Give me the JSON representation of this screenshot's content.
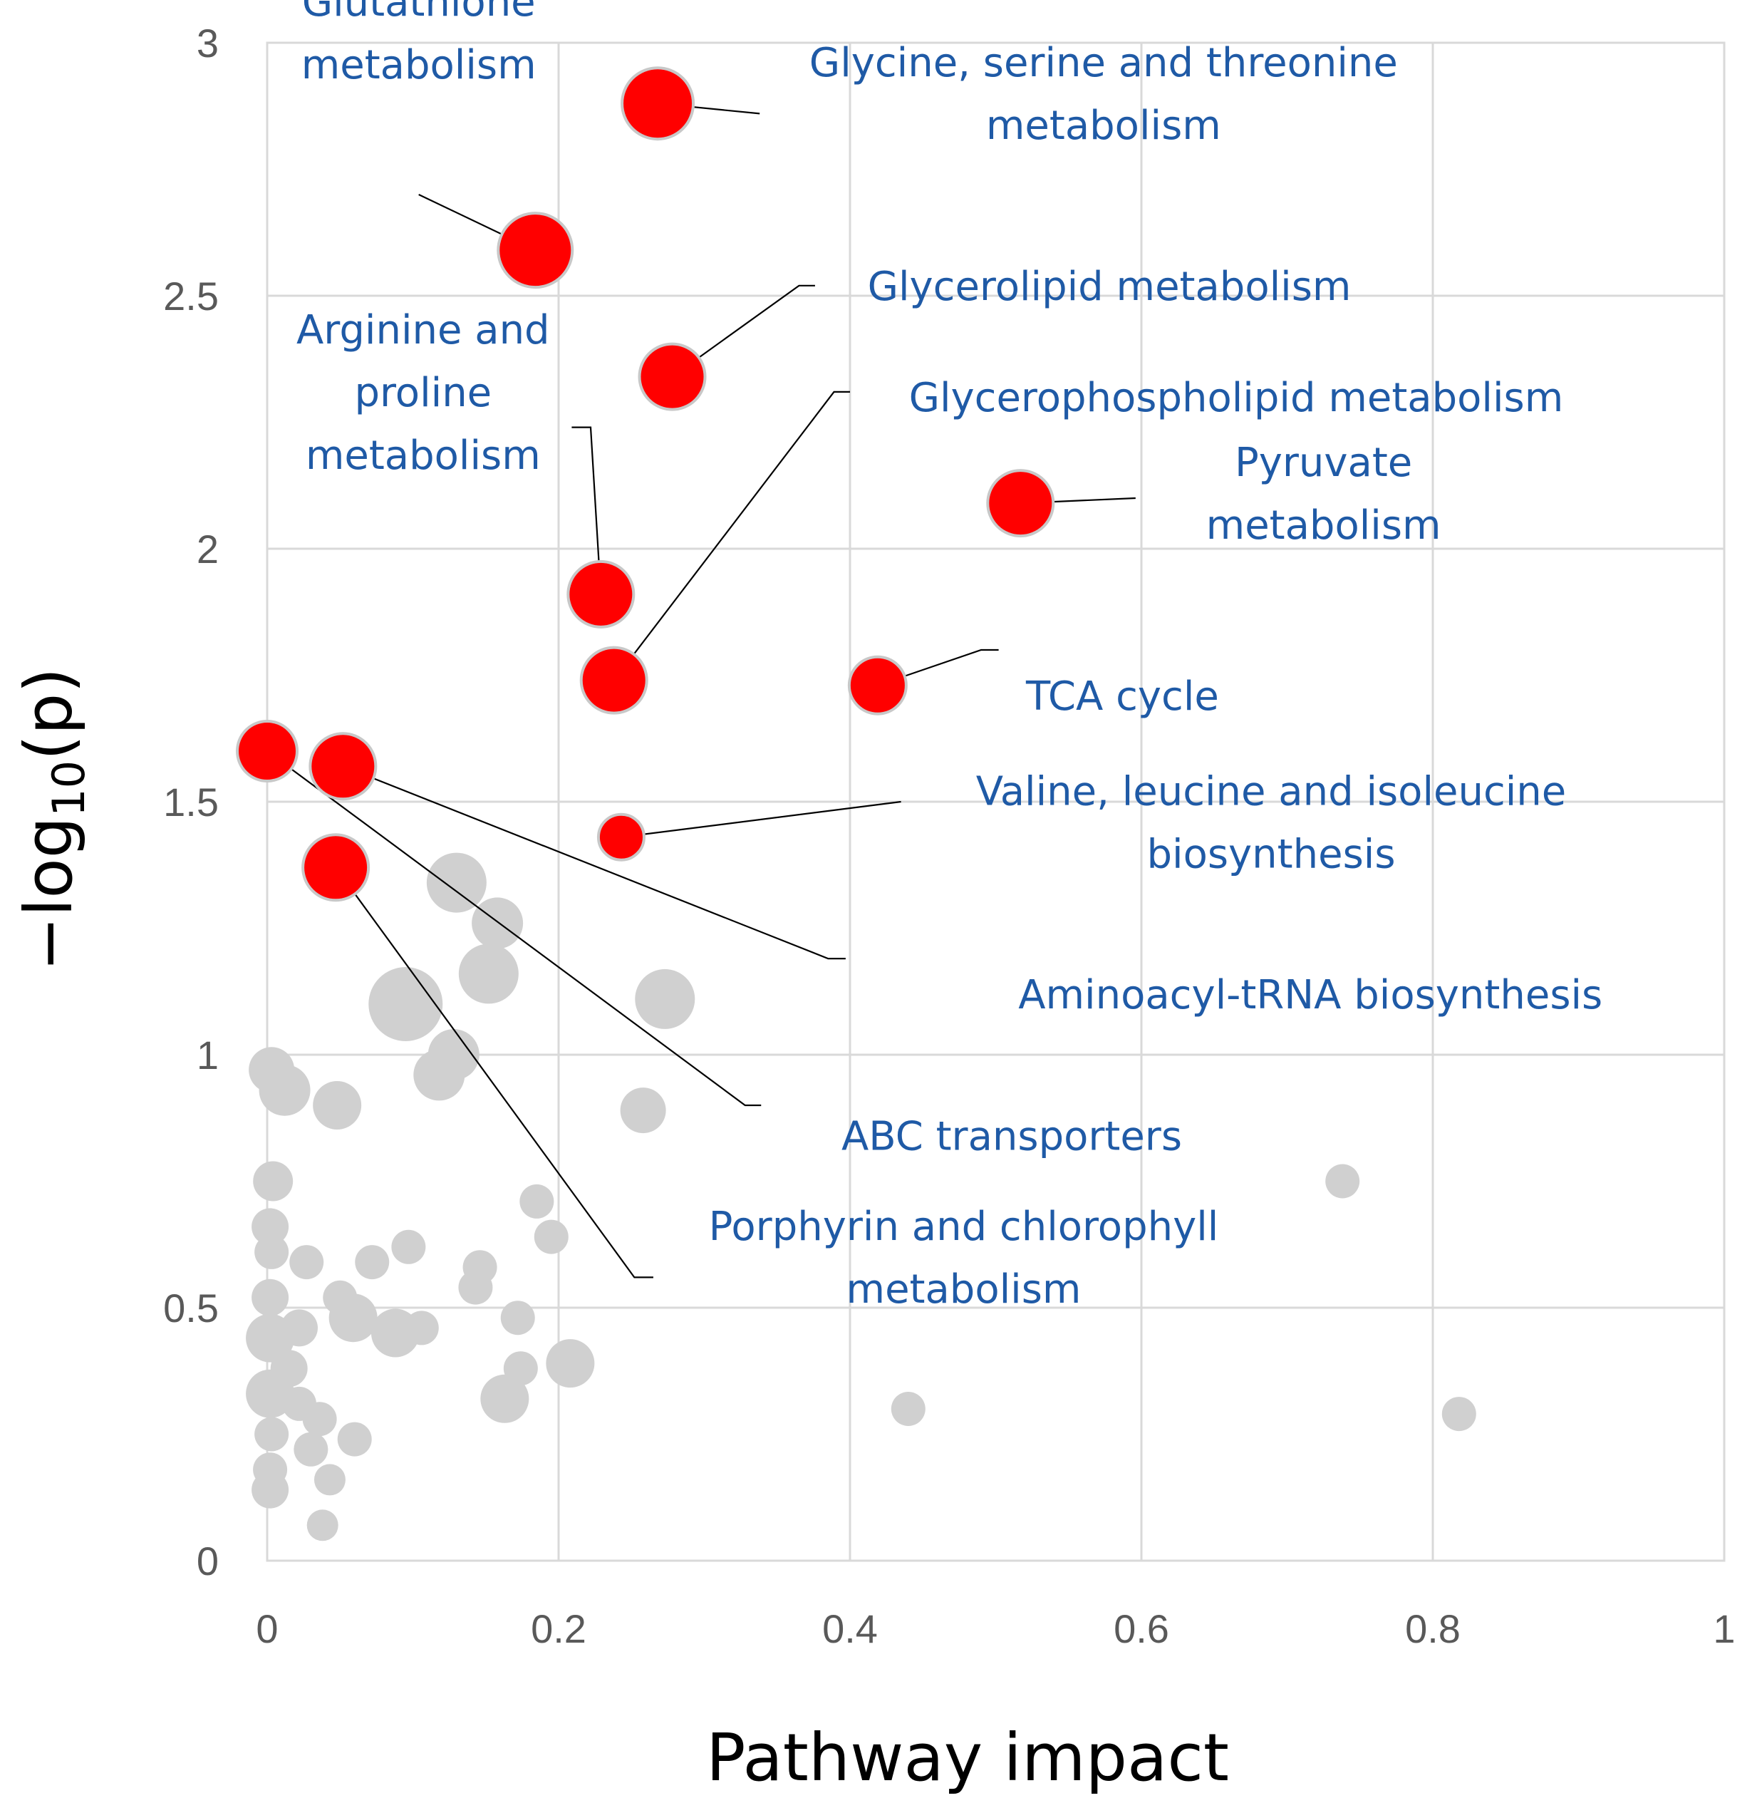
{
  "chart_data": {
    "type": "scatter",
    "xlabel": "Pathway impact",
    "ylabel": "−log10(p)",
    "ylabel_parts": {
      "prefix": "−log",
      "sub": "10",
      "suffix": "(p)"
    },
    "xlim": [
      0,
      1
    ],
    "ylim": [
      0,
      3
    ],
    "x_ticks": [
      "0",
      "0.2",
      "0.4",
      "0.6",
      "0.8",
      "1"
    ],
    "y_ticks": [
      "0",
      "0.5",
      "1",
      "1.5",
      "2",
      "2.5",
      "3"
    ],
    "x_tick_values": [
      0,
      0.2,
      0.4,
      0.6,
      0.8,
      1
    ],
    "y_tick_values": [
      0,
      0.5,
      1,
      1.5,
      2,
      2.5,
      3
    ],
    "grid": true,
    "colors": {
      "significant": "#ff0000",
      "nonsignificant": "#d0d0d0",
      "annotation": "#1f5aa6",
      "grid": "#d9d9d9"
    },
    "significant": [
      {
        "name": "Glycine, serine and threonine metabolism",
        "x": 0.268,
        "y": 2.88,
        "r": 2.5
      },
      {
        "name": "Glutathione metabolism",
        "x": 0.184,
        "y": 2.59,
        "r": 2.6
      },
      {
        "name": "Glycerolipid metabolism",
        "x": 0.278,
        "y": 2.34,
        "r": 2.3
      },
      {
        "name": "Pyruvate metabolism",
        "x": 0.517,
        "y": 2.09,
        "r": 2.3
      },
      {
        "name": "Arginine and proline metabolism",
        "x": 0.229,
        "y": 1.91,
        "r": 2.3
      },
      {
        "name": "Glycerophospholipid metabolism",
        "x": 0.238,
        "y": 1.74,
        "r": 2.3
      },
      {
        "name": "TCA cycle",
        "x": 0.419,
        "y": 1.73,
        "r": 2.0
      },
      {
        "name": "ABC transporters",
        "x": 0.0,
        "y": 1.6,
        "r": 2.1
      },
      {
        "name": "Aminoacyl-tRNA biosynthesis",
        "x": 0.052,
        "y": 1.57,
        "r": 2.3
      },
      {
        "name": "Valine, leucine and isoleucine biosynthesis",
        "x": 0.243,
        "y": 1.43,
        "r": 1.6
      },
      {
        "name": "Porphyrin and chlorophyll metabolism",
        "x": 0.047,
        "y": 1.37,
        "r": 2.3
      }
    ],
    "nonsignificant": [
      {
        "x": 0.13,
        "y": 1.34,
        "r": 2.1
      },
      {
        "x": 0.158,
        "y": 1.26,
        "r": 1.8
      },
      {
        "x": 0.152,
        "y": 1.16,
        "r": 2.1
      },
      {
        "x": 0.095,
        "y": 1.1,
        "r": 2.6
      },
      {
        "x": 0.273,
        "y": 1.11,
        "r": 2.1
      },
      {
        "x": 0.128,
        "y": 1.0,
        "r": 1.8
      },
      {
        "x": 0.118,
        "y": 0.96,
        "r": 1.8
      },
      {
        "x": 0.003,
        "y": 0.97,
        "r": 1.6
      },
      {
        "x": 0.012,
        "y": 0.93,
        "r": 1.8
      },
      {
        "x": 0.048,
        "y": 0.9,
        "r": 1.7
      },
      {
        "x": 0.258,
        "y": 0.89,
        "r": 1.6
      },
      {
        "x": 0.738,
        "y": 0.75,
        "r": 1.2
      },
      {
        "x": 0.004,
        "y": 0.75,
        "r": 1.4
      },
      {
        "x": 0.185,
        "y": 0.71,
        "r": 1.2
      },
      {
        "x": 0.002,
        "y": 0.66,
        "r": 1.3
      },
      {
        "x": 0.195,
        "y": 0.64,
        "r": 1.2
      },
      {
        "x": 0.003,
        "y": 0.61,
        "r": 1.2
      },
      {
        "x": 0.097,
        "y": 0.62,
        "r": 1.2
      },
      {
        "x": 0.027,
        "y": 0.59,
        "r": 1.2
      },
      {
        "x": 0.072,
        "y": 0.59,
        "r": 1.2
      },
      {
        "x": 0.146,
        "y": 0.58,
        "r": 1.2
      },
      {
        "x": 0.143,
        "y": 0.54,
        "r": 1.2
      },
      {
        "x": 0.002,
        "y": 0.52,
        "r": 1.3
      },
      {
        "x": 0.05,
        "y": 0.52,
        "r": 1.2
      },
      {
        "x": 0.059,
        "y": 0.48,
        "r": 1.7
      },
      {
        "x": 0.172,
        "y": 0.48,
        "r": 1.2
      },
      {
        "x": 0.022,
        "y": 0.46,
        "r": 1.3
      },
      {
        "x": 0.088,
        "y": 0.45,
        "r": 1.7
      },
      {
        "x": 0.106,
        "y": 0.46,
        "r": 1.2
      },
      {
        "x": 0.002,
        "y": 0.44,
        "r": 1.7
      },
      {
        "x": 0.015,
        "y": 0.38,
        "r": 1.3
      },
      {
        "x": 0.174,
        "y": 0.38,
        "r": 1.2
      },
      {
        "x": 0.208,
        "y": 0.39,
        "r": 1.7
      },
      {
        "x": 0.163,
        "y": 0.32,
        "r": 1.7
      },
      {
        "x": 0.002,
        "y": 0.33,
        "r": 1.7
      },
      {
        "x": 0.022,
        "y": 0.31,
        "r": 1.2
      },
      {
        "x": 0.036,
        "y": 0.28,
        "r": 1.2
      },
      {
        "x": 0.44,
        "y": 0.3,
        "r": 1.2
      },
      {
        "x": 0.818,
        "y": 0.29,
        "r": 1.2
      },
      {
        "x": 0.003,
        "y": 0.25,
        "r": 1.2
      },
      {
        "x": 0.06,
        "y": 0.24,
        "r": 1.2
      },
      {
        "x": 0.03,
        "y": 0.22,
        "r": 1.2
      },
      {
        "x": 0.002,
        "y": 0.18,
        "r": 1.2
      },
      {
        "x": 0.043,
        "y": 0.16,
        "r": 1.1
      },
      {
        "x": 0.002,
        "y": 0.14,
        "r": 1.3
      },
      {
        "x": 0.038,
        "y": 0.07,
        "r": 1.1
      }
    ],
    "annotations": [
      {
        "lines": [
          "Glutathione",
          "metabolism"
        ],
        "text_anchor_point": [
          0.104,
          3.02
        ],
        "anchor": "middle",
        "leader": [
          [
            0.104,
            2.7
          ],
          [
            0.184,
            2.59
          ]
        ]
      },
      {
        "lines": [
          "Glycine, serine and threonine",
          "metabolism"
        ],
        "text_anchor_point": [
          0.574,
          2.9
        ],
        "anchor": "middle",
        "leader": [
          [
            0.338,
            2.86
          ],
          [
            0.268,
            2.88
          ]
        ]
      },
      {
        "lines": [
          "Glycerolipid metabolism"
        ],
        "text_anchor_point": [
          0.578,
          2.52
        ],
        "anchor": "middle",
        "leader": [
          [
            0.376,
            2.52
          ],
          [
            0.365,
            2.52
          ],
          [
            0.278,
            2.34
          ]
        ]
      },
      {
        "lines": [
          "Arginine and",
          "proline",
          "metabolism"
        ],
        "text_anchor_point": [
          0.107,
          2.31
        ],
        "anchor": "middle",
        "leader": [
          [
            0.209,
            2.24
          ],
          [
            0.222,
            2.24
          ],
          [
            0.229,
            1.91
          ]
        ]
      },
      {
        "lines": [
          "Glycerophospholipid  metabolism"
        ],
        "text_anchor_point": [
          0.665,
          2.3
        ],
        "anchor": "middle",
        "leader": [
          [
            0.4,
            2.31
          ],
          [
            0.389,
            2.31
          ],
          [
            0.238,
            1.74
          ]
        ]
      },
      {
        "lines": [
          "Pyruvate",
          "metabolism"
        ],
        "text_anchor_point": [
          0.725,
          2.11
        ],
        "anchor": "middle",
        "leader": [
          [
            0.596,
            2.1
          ],
          [
            0.517,
            2.09
          ]
        ]
      },
      {
        "lines": [
          "TCA cycle"
        ],
        "text_anchor_point": [
          0.587,
          1.71
        ],
        "anchor": "middle",
        "leader": [
          [
            0.502,
            1.8
          ],
          [
            0.49,
            1.8
          ],
          [
            0.419,
            1.73
          ]
        ]
      },
      {
        "lines": [
          "Valine, leucine and isoleucine",
          "biosynthesis"
        ],
        "text_anchor_point": [
          0.689,
          1.46
        ],
        "anchor": "middle",
        "leader": [
          [
            0.435,
            1.5
          ],
          [
            0.243,
            1.43
          ]
        ]
      },
      {
        "lines": [
          "Aminoacyl-tRNA biosynthesis"
        ],
        "text_anchor_point": [
          0.716,
          1.12
        ],
        "anchor": "middle",
        "leader": [
          [
            0.397,
            1.19
          ],
          [
            0.385,
            1.19
          ],
          [
            0.052,
            1.57
          ]
        ]
      },
      {
        "lines": [
          "ABC transporters"
        ],
        "text_anchor_point": [
          0.511,
          0.84
        ],
        "anchor": "middle",
        "leader": [
          [
            0.339,
            0.9
          ],
          [
            0.328,
            0.9
          ],
          [
            0.0,
            1.6
          ]
        ]
      },
      {
        "lines": [
          "Porphyrin and chlorophyll",
          "metabolism"
        ],
        "text_anchor_point": [
          0.478,
          0.6
        ],
        "anchor": "middle",
        "leader": [
          [
            0.265,
            0.56
          ],
          [
            0.252,
            0.56
          ],
          [
            0.047,
            1.37
          ]
        ]
      }
    ]
  }
}
